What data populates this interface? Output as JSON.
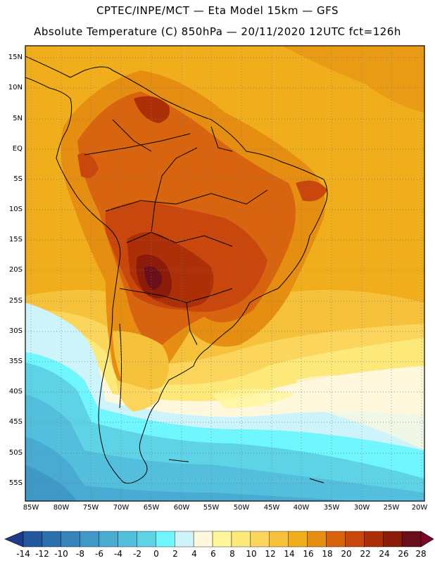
{
  "header": {
    "line1": "CPTEC/INPE/MCT —  Eta Model 15km — GFS",
    "line2": "Absolute Temperature (C) 850hPa — 20/11/2020 12UTC fct=126h"
  },
  "axes": {
    "lat_labels": [
      "15N",
      "10N",
      "5N",
      "EQ",
      "5S",
      "10S",
      "15S",
      "20S",
      "25S",
      "30S",
      "35S",
      "40S",
      "45S",
      "50S",
      "55S"
    ],
    "lon_labels": [
      "85W",
      "80W",
      "75W",
      "70W",
      "65W",
      "60W",
      "55W",
      "50W",
      "45W",
      "40W",
      "35W",
      "30W",
      "25W",
      "20W"
    ]
  },
  "colorbar": {
    "labels": [
      "-14",
      "-12",
      "-10",
      "-8",
      "-6",
      "-4",
      "-2",
      "0",
      "2",
      "4",
      "6",
      "8",
      "10",
      "12",
      "14",
      "16",
      "18",
      "20",
      "22",
      "24",
      "26",
      "28"
    ],
    "colors": [
      "#1c3b8a",
      "#24569e",
      "#2c6fae",
      "#3684bb",
      "#3f98c6",
      "#49abd1",
      "#53bfdc",
      "#5fd3e6",
      "#6ff6ff",
      "#cdf3fb",
      "#fff8dd",
      "#fff59a",
      "#fde87a",
      "#fcd55c",
      "#f6c23c",
      "#f0ae1c",
      "#e58e12",
      "#d9640f",
      "#c9470c",
      "#ad2f08",
      "#8c1c0a",
      "#6a0e1a",
      "#7d0526"
    ]
  }
}
